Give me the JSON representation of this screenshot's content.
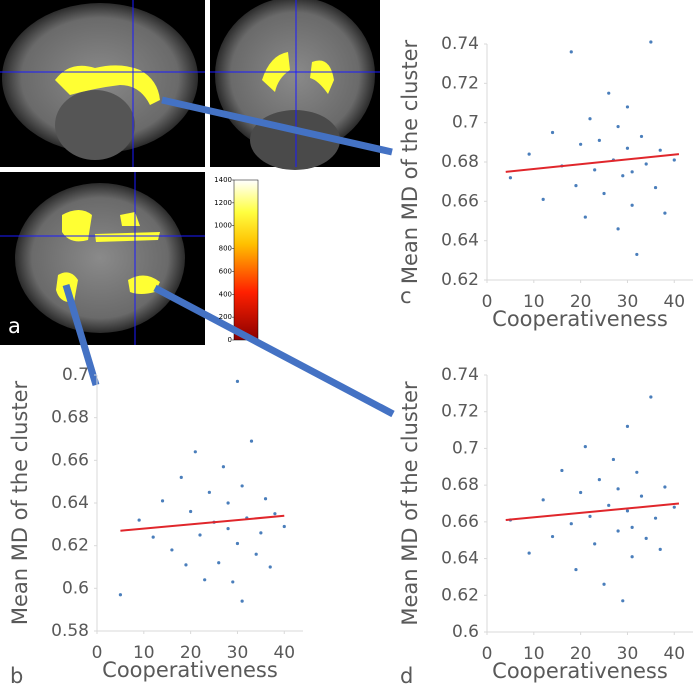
{
  "panel_labels": [
    "a",
    "b",
    "c",
    "d"
  ],
  "colorbar": {
    "lim": [
      0,
      1400
    ],
    "ticks": [
      0,
      200,
      400,
      600,
      800,
      1000,
      1200,
      1400
    ]
  },
  "chart_data": [
    {
      "type": "scatter",
      "panel": "b",
      "x_label": "Cooperativeness",
      "y_label": "Mean MD of the cluster",
      "color": "#4a7ebb",
      "xlim": [
        0,
        44
      ],
      "xticks": [
        0,
        10,
        20,
        30,
        40
      ],
      "ylim": [
        0.58,
        0.7
      ],
      "yticks": [
        0.58,
        0.6,
        0.62,
        0.64,
        0.66,
        0.68,
        0.7
      ],
      "x": [
        5,
        9,
        12,
        14,
        16,
        18,
        19,
        20,
        21,
        22,
        23,
        24,
        25,
        26,
        27,
        28,
        28,
        29,
        30,
        30,
        31,
        32,
        33,
        34,
        35,
        36,
        37,
        38,
        40,
        31
      ],
      "y": [
        0.597,
        0.632,
        0.624,
        0.641,
        0.618,
        0.652,
        0.611,
        0.636,
        0.664,
        0.625,
        0.604,
        0.645,
        0.631,
        0.612,
        0.657,
        0.628,
        0.64,
        0.603,
        0.697,
        0.621,
        0.648,
        0.633,
        0.669,
        0.616,
        0.626,
        0.642,
        0.61,
        0.635,
        0.629,
        0.594
      ],
      "fit": {
        "color": "#e0262b",
        "x": [
          5,
          40
        ],
        "y": [
          0.627,
          0.634
        ]
      }
    },
    {
      "type": "scatter",
      "panel": "c",
      "x_label": "Cooperativeness",
      "y_label": "Mean MD of the cluster",
      "color": "#4a7ebb",
      "xlim": [
        0,
        44
      ],
      "xticks": [
        0,
        10,
        20,
        30,
        40
      ],
      "ylim": [
        0.62,
        0.74
      ],
      "yticks": [
        0.62,
        0.64,
        0.66,
        0.68,
        0.7,
        0.72,
        0.74
      ],
      "x": [
        5,
        9,
        12,
        14,
        16,
        18,
        19,
        20,
        21,
        22,
        23,
        24,
        25,
        26,
        27,
        28,
        28,
        29,
        30,
        30,
        31,
        32,
        33,
        34,
        35,
        36,
        37,
        38,
        40,
        31
      ],
      "y": [
        0.672,
        0.684,
        0.661,
        0.695,
        0.678,
        0.736,
        0.668,
        0.689,
        0.652,
        0.702,
        0.676,
        0.691,
        0.664,
        0.715,
        0.681,
        0.646,
        0.698,
        0.673,
        0.708,
        0.687,
        0.658,
        0.633,
        0.693,
        0.679,
        0.741,
        0.667,
        0.686,
        0.654,
        0.681,
        0.675
      ],
      "fit": {
        "color": "#e0262b",
        "x": [
          4,
          41
        ],
        "y": [
          0.675,
          0.684
        ]
      }
    },
    {
      "type": "scatter",
      "panel": "d",
      "x_label": "Cooperativeness",
      "y_label": "Mean MD of the cluster",
      "color": "#4a7ebb",
      "xlim": [
        0,
        44
      ],
      "xticks": [
        0,
        10,
        20,
        30,
        40
      ],
      "ylim": [
        0.6,
        0.74
      ],
      "yticks": [
        0.6,
        0.62,
        0.64,
        0.66,
        0.68,
        0.7,
        0.72,
        0.74
      ],
      "x": [
        5,
        9,
        12,
        14,
        16,
        18,
        19,
        20,
        21,
        22,
        23,
        24,
        25,
        26,
        27,
        28,
        28,
        29,
        30,
        30,
        31,
        32,
        33,
        34,
        35,
        36,
        37,
        38,
        40,
        31
      ],
      "y": [
        0.661,
        0.643,
        0.672,
        0.652,
        0.688,
        0.659,
        0.634,
        0.676,
        0.701,
        0.663,
        0.648,
        0.683,
        0.626,
        0.669,
        0.694,
        0.655,
        0.678,
        0.617,
        0.712,
        0.666,
        0.641,
        0.687,
        0.674,
        0.651,
        0.728,
        0.662,
        0.645,
        0.679,
        0.668,
        0.657
      ],
      "fit": {
        "color": "#e0262b",
        "x": [
          4,
          41
        ],
        "y": [
          0.661,
          0.67
        ]
      }
    }
  ]
}
